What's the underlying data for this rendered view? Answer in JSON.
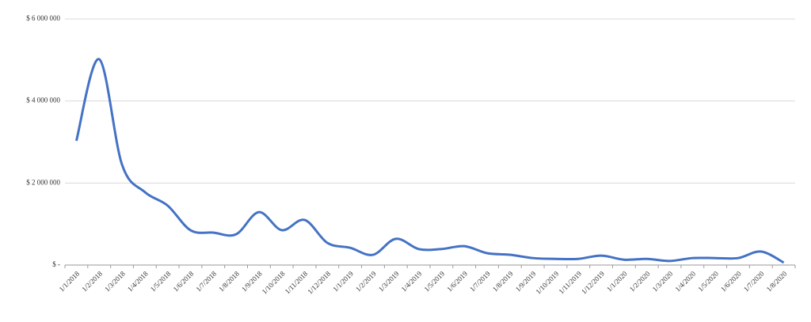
{
  "chart_data": {
    "type": "line",
    "categories": [
      "1/1/2018",
      "1/2/2018",
      "1/3/2018",
      "1/4/2018",
      "1/5/2018",
      "1/6/2018",
      "1/7/2018",
      "1/8/2018",
      "1/9/2018",
      "1/10/2018",
      "1/11/2018",
      "1/12/2018",
      "1/1/2019",
      "1/2/2019",
      "1/3/2019",
      "1/4/2019",
      "1/5/2019",
      "1/6/2019",
      "1/7/2019",
      "1/8/2019",
      "1/9/2019",
      "1/10/2019",
      "1/11/2019",
      "1/12/2019",
      "1/1/2020",
      "1/2/2020",
      "1/3/2020",
      "1/4/2020",
      "1/5/2020",
      "1/6/2020",
      "1/7/2020",
      "1/8/2020"
    ],
    "values": [
      3030000,
      5020000,
      2450000,
      1780000,
      1450000,
      850000,
      790000,
      750000,
      1290000,
      850000,
      1100000,
      540000,
      420000,
      250000,
      640000,
      390000,
      390000,
      460000,
      290000,
      250000,
      170000,
      150000,
      150000,
      230000,
      130000,
      150000,
      100000,
      170000,
      170000,
      170000,
      330000,
      60000
    ],
    "color": "#4472c4",
    "ylim": [
      0,
      6000000
    ],
    "yticks": [
      {
        "value": 0,
        "label": "$ -"
      },
      {
        "value": 2000000,
        "label": "$ 2 000 000"
      },
      {
        "value": 4000000,
        "label": "$ 4 000 000"
      },
      {
        "value": 6000000,
        "label": "$ 6 000 000"
      }
    ],
    "grid": true
  }
}
